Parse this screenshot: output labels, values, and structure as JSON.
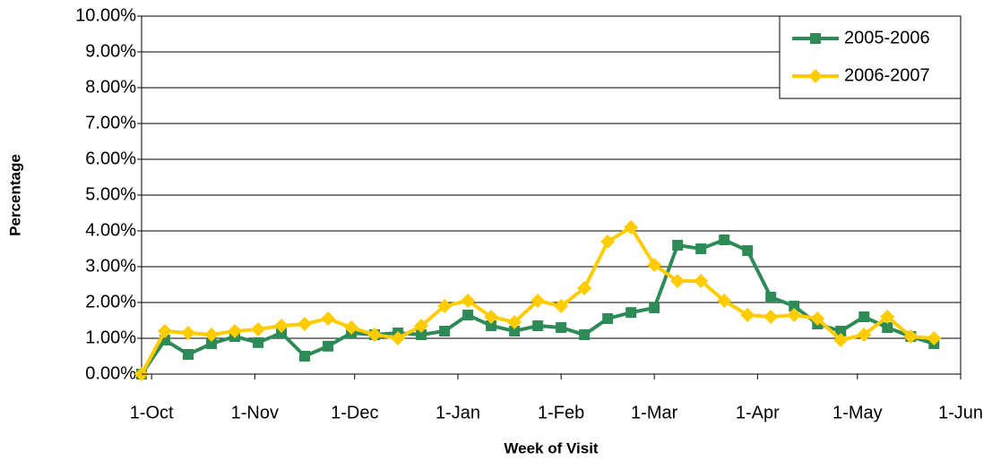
{
  "chart_data": {
    "type": "line",
    "x_label": "Week of Visit",
    "y_label": "Percentage",
    "x": [
      -3,
      4,
      11,
      18,
      25,
      32,
      39,
      46,
      53,
      60,
      67,
      74,
      81,
      88,
      95,
      102,
      109,
      116,
      123,
      130,
      137,
      144,
      151,
      158,
      165,
      172,
      179,
      186,
      193,
      200,
      207,
      214,
      221,
      228,
      235
    ],
    "xlim": [
      -3,
      243
    ],
    "xticks": [
      {
        "value": 0,
        "label": "1-Oct"
      },
      {
        "value": 31,
        "label": "1-Nov"
      },
      {
        "value": 61,
        "label": "1-Dec"
      },
      {
        "value": 92,
        "label": "1-Jan"
      },
      {
        "value": 123,
        "label": "1-Feb"
      },
      {
        "value": 151,
        "label": "1-Mar"
      },
      {
        "value": 182,
        "label": "1-Apr"
      },
      {
        "value": 212,
        "label": "1-May"
      },
      {
        "value": 243,
        "label": "1-Jun"
      }
    ],
    "ylim": [
      0,
      10
    ],
    "yticks": [
      {
        "value": 0,
        "label": "0.00%"
      },
      {
        "value": 1,
        "label": "1.00%"
      },
      {
        "value": 2,
        "label": "2.00%"
      },
      {
        "value": 3,
        "label": "3.00%"
      },
      {
        "value": 4,
        "label": "4.00%"
      },
      {
        "value": 5,
        "label": "5.00%"
      },
      {
        "value": 6,
        "label": "6.00%"
      },
      {
        "value": 7,
        "label": "7.00%"
      },
      {
        "value": 8,
        "label": "8.00%"
      },
      {
        "value": 9,
        "label": "9.00%"
      },
      {
        "value": 10,
        "label": "10.00%"
      }
    ],
    "grid": true,
    "legend": "top-right",
    "series": [
      {
        "name": "2005-2006",
        "color": "#2e8b57",
        "marker": "square",
        "values": [
          0,
          0.95,
          0.55,
          0.85,
          1.05,
          0.88,
          1.15,
          0.5,
          0.78,
          1.15,
          1.1,
          1.15,
          1.1,
          1.2,
          1.65,
          1.35,
          1.2,
          1.35,
          1.3,
          1.1,
          1.55,
          1.72,
          1.85,
          3.6,
          3.5,
          3.75,
          3.45,
          2.15,
          1.9,
          1.4,
          1.2,
          1.6,
          1.3,
          1.05,
          0.85
        ]
      },
      {
        "name": "2006-2007",
        "color": "#ffcc00",
        "marker": "diamond",
        "values": [
          0,
          1.2,
          1.15,
          1.1,
          1.2,
          1.25,
          1.35,
          1.4,
          1.55,
          1.3,
          1.1,
          1.0,
          1.35,
          1.9,
          2.05,
          1.6,
          1.45,
          2.05,
          1.9,
          2.4,
          3.7,
          4.1,
          3.05,
          2.6,
          2.6,
          2.05,
          1.65,
          1.6,
          1.65,
          1.55,
          0.95,
          1.1,
          1.6,
          1.05,
          1.0
        ]
      }
    ]
  }
}
